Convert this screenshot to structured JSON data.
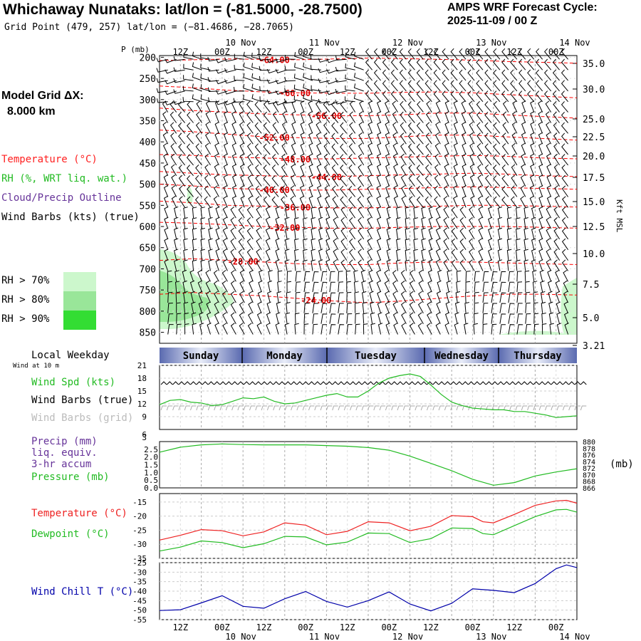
{
  "header": {
    "title": "Whichaway Nunataks:  lat/lon = (-81.5000, -28.7500)",
    "subtitle": "Grid Point (479, 257) lat/lon = (−81.4686, −28.7065)",
    "cycle_label": "AMPS WRF Forecast Cycle:",
    "cycle_value": "2025-11-09 / 00  Z"
  },
  "legend": {
    "grid_label": "Model Grid ΔX:",
    "grid_value": "8.000 km",
    "temperature": "Temperature (°C)",
    "rh": "RH (%, WRT liq. wat.)",
    "cloud": "Cloud/Precip Outline",
    "wind": "Wind Barbs (kts) (true)",
    "rh70": "RH > 70%",
    "rh80": "RH > 80%",
    "rh90": "RH > 90%",
    "pressure_axis": "P (mb)",
    "height_axis": "Kft MSL"
  },
  "colors": {
    "temperature": "#ff0000",
    "rh70": "#ccf7cc",
    "rh80": "#99e699",
    "rh90": "#33dd33",
    "cloud": "#663399",
    "wind": "#000000",
    "windchill": "#0000aa",
    "dewpoint": "#00bb00",
    "grid_barb": "#aaaaaa",
    "day_band": "#5a6ab0"
  },
  "time_axis": {
    "top_hours": [
      "12Z",
      "00Z",
      "12Z",
      "00Z",
      "12Z",
      "00Z",
      "12Z",
      "00Z",
      "12Z",
      "00Z"
    ],
    "dates": [
      "10 Nov",
      "11 Nov",
      "12 Nov",
      "13 Nov",
      "14 Nov"
    ],
    "weekdays": [
      "Sunday",
      "Monday",
      "Tuesday",
      "Wednesday",
      "Thursday"
    ],
    "local_weekday_label": "Local Weekday",
    "wind_at_label": "Wind at 10 m"
  },
  "chart_data": [
    {
      "type": "contour",
      "name": "Cross-section",
      "pressure_ticks": [
        "200",
        "250",
        "300",
        "350",
        "400",
        "450",
        "500",
        "550",
        "600",
        "650",
        "700",
        "750",
        "800",
        "850"
      ],
      "height_ticks": [
        "35.0",
        "30.0",
        "25.0",
        "22.5",
        "20.0",
        "17.5",
        "15.0",
        "12.5",
        "10.0",
        "7.5",
        "5.0",
        "3.21"
      ],
      "isotherms": [
        {
          "label": "-64.00",
          "p": [
            208,
            206,
            204,
            205,
            206,
            204,
            202,
            203,
            205,
            207,
            210,
            212,
            214
          ]
        },
        {
          "label": "-60.00",
          "p": [
            268,
            272,
            278,
            282,
            284,
            285,
            285,
            283,
            282,
            284,
            288,
            292,
            296
          ]
        },
        {
          "label": "-56.00",
          "p": [
            320,
            326,
            330,
            334,
            336,
            338,
            338,
            336,
            332,
            332,
            336,
            340,
            344
          ]
        },
        {
          "label": "-52.00",
          "p": [
            372,
            376,
            382,
            388,
            390,
            392,
            392,
            388,
            384,
            384,
            388,
            392,
            396
          ]
        },
        {
          "label": "-48.00",
          "p": [
            430,
            432,
            436,
            438,
            440,
            440,
            438,
            436,
            434,
            432,
            434,
            438,
            440
          ]
        },
        {
          "label": "-44.00",
          "p": [
            470,
            474,
            478,
            480,
            482,
            482,
            480,
            478,
            476,
            474,
            476,
            480,
            482
          ]
        },
        {
          "label": "-40.00",
          "p": [
            500,
            504,
            510,
            512,
            514,
            514,
            512,
            510,
            508,
            506,
            508,
            510,
            512
          ]
        },
        {
          "label": "-36.00",
          "p": [
            540,
            544,
            550,
            552,
            554,
            556,
            556,
            554,
            552,
            550,
            550,
            552,
            554
          ]
        },
        {
          "label": "-32.00",
          "p": [
            590,
            592,
            596,
            600,
            602,
            604,
            604,
            602,
            600,
            600,
            600,
            602,
            604
          ]
        },
        {
          "label": "-28.00",
          "p": [
            680,
            676,
            680,
            684,
            688,
            690,
            690,
            686,
            684,
            684,
            686,
            688,
            690
          ]
        },
        {
          "label": "-24.00",
          "p": [
            760,
            756,
            760,
            764,
            770,
            776,
            780,
            776,
            770,
            764,
            760,
            760,
            762
          ]
        }
      ],
      "isotherm_label_positions": [
        {
          "label": "-64.00",
          "t": 5.5
        },
        {
          "label": "-60.00",
          "t": 6.5
        },
        {
          "label": "-56.00",
          "t": 8.0
        },
        {
          "label": "-52.00",
          "t": 5.5
        },
        {
          "label": "-48.00",
          "t": 6.5
        },
        {
          "label": "-44.00",
          "t": 8.0
        },
        {
          "label": "-40.00",
          "t": 5.5
        },
        {
          "label": "-36.00",
          "t": 6.5
        },
        {
          "label": "-32.00",
          "t": 6.0
        },
        {
          "label": "-28.00",
          "t": 4.0
        },
        {
          "label": "-24.00",
          "t": 7.5
        }
      ]
    },
    {
      "type": "line",
      "name": "Wind Speed",
      "labels": [
        "Wind Spd (kts)",
        "Wind Barbs (true)",
        "Wind Barbs (grid)"
      ],
      "yticks": [
        9,
        12,
        15,
        18,
        21
      ],
      "ylim": [
        6,
        21
      ],
      "x": [
        0,
        0.5,
        1,
        1.5,
        2,
        2.5,
        3,
        3.5,
        4,
        4.5,
        5,
        5.5,
        6,
        6.5,
        7,
        7.5,
        8,
        8.5,
        9,
        9.5,
        10,
        10.5,
        11,
        11.5,
        12,
        12.5,
        13,
        13.5,
        14,
        14.5,
        15,
        15.5,
        16,
        16.5,
        17,
        17.5,
        18,
        18.5,
        19,
        19.5,
        20
      ],
      "values": [
        11.8,
        12.8,
        13.0,
        12.4,
        12.2,
        11.6,
        11.8,
        12.6,
        13.4,
        13.2,
        13.6,
        12.6,
        12.0,
        12.2,
        12.8,
        13.4,
        14.0,
        14.4,
        13.6,
        13.6,
        15.0,
        16.8,
        18.0,
        18.6,
        19.0,
        18.4,
        16.4,
        14.2,
        12.4,
        11.6,
        11.0,
        10.8,
        10.6,
        10.6,
        10.2,
        10.2,
        9.8,
        9.4,
        8.8,
        9.0,
        9.2
      ]
    },
    {
      "type": "line",
      "name": "Precip / Pressure",
      "labels": [
        "Precip (mm)",
        "liq. equiv.",
        "3-hr accum",
        "Pressure (mb)"
      ],
      "yticks_left": [
        "0.0",
        "0.5",
        "1.0",
        "1.5",
        "2.0",
        "2.5"
      ],
      "ylim_left": [
        0,
        3.0
      ],
      "top_left_tick": "3",
      "yticks_right": [
        "866",
        "868",
        "870",
        "872",
        "874",
        "876",
        "878",
        "880"
      ],
      "ylim_right": [
        866,
        880
      ],
      "pressure_unit": "(mb)",
      "x": [
        0,
        1,
        2,
        3,
        4,
        5,
        6,
        7,
        8,
        9,
        10,
        11,
        12,
        13,
        14,
        15,
        16,
        17,
        18,
        19,
        20
      ],
      "pressure": [
        876.8,
        878.3,
        879.0,
        879.3,
        879.1,
        879.0,
        879.0,
        879.0,
        878.8,
        878.6,
        878.2,
        877.4,
        875.6,
        873.4,
        871.2,
        868.6,
        866.8,
        867.6,
        869.6,
        870.8,
        871.8
      ]
    },
    {
      "type": "line",
      "name": "Temperature",
      "labels": [
        "Temperature (°C)",
        "Dewpoint (°C)"
      ],
      "yticks": [
        -35,
        -30,
        -25,
        -20,
        -15
      ],
      "ylim": [
        -35,
        -12
      ],
      "x": [
        0,
        1,
        2,
        3,
        4,
        5,
        6,
        7,
        8,
        9,
        10,
        11,
        12,
        13,
        14,
        15,
        15.5,
        16,
        17,
        18,
        19,
        19.5,
        20
      ],
      "series": [
        {
          "name": "Temperature (°C)",
          "values": [
            -28.5,
            -26.8,
            -24.8,
            -25.2,
            -27.0,
            -25.6,
            -22.4,
            -23.2,
            -26.6,
            -25.4,
            -22.0,
            -22.4,
            -25.2,
            -23.6,
            -19.8,
            -20.2,
            -22.0,
            -22.4,
            -19.4,
            -16.2,
            -14.6,
            -14.4,
            -15.4
          ]
        },
        {
          "name": "Dewpoint (°C)",
          "values": [
            -32.4,
            -31.0,
            -28.8,
            -29.4,
            -31.2,
            -29.8,
            -27.2,
            -27.4,
            -30.2,
            -29.2,
            -26.0,
            -26.2,
            -29.4,
            -28.0,
            -24.2,
            -24.4,
            -26.2,
            -26.6,
            -23.4,
            -20.2,
            -17.8,
            -17.6,
            -18.6
          ]
        }
      ]
    },
    {
      "type": "line",
      "name": "Wind Chill",
      "labels": [
        "Wind Chill T (°C)"
      ],
      "yticks": [
        -55,
        -50,
        -45,
        -40,
        -35,
        -30,
        -25
      ],
      "ylim": [
        -55,
        -25
      ],
      "x": [
        0,
        1,
        2,
        3,
        4,
        5,
        6,
        7,
        8,
        9,
        10,
        11,
        12,
        13,
        14,
        15,
        16,
        17,
        18,
        19,
        19.5,
        20
      ],
      "values": [
        -50.2,
        -49.8,
        -46.2,
        -42.4,
        -48.0,
        -49.0,
        -44.0,
        -40.2,
        -45.4,
        -48.4,
        -45.0,
        -40.4,
        -46.8,
        -50.4,
        -46.4,
        -38.8,
        -39.6,
        -40.8,
        -36.0,
        -28.2,
        -26.2,
        -27.6
      ]
    }
  ]
}
